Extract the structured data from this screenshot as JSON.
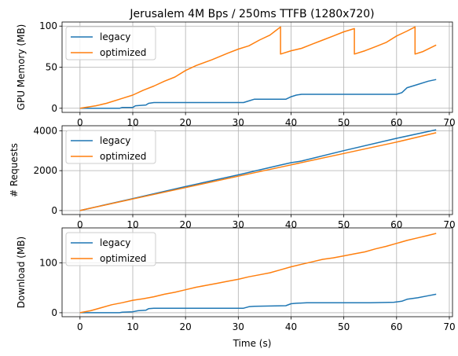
{
  "chart_data": [
    {
      "type": "line",
      "title": "Jerusalem 4M Bps / 250ms TTFB (1280x720)",
      "xlabel": "",
      "ylabel": "GPU Memory (MB)",
      "xlim": [
        -3.4,
        70.6
      ],
      "ylim": [
        -5,
        105
      ],
      "xticks": [
        0,
        10,
        20,
        30,
        40,
        50,
        60,
        70
      ],
      "yticks": [
        0,
        50,
        100
      ],
      "show_xtick_labels": true,
      "grid": true,
      "legend": "upper-left",
      "series": [
        {
          "name": "legacy",
          "color": "#1f77b4",
          "points": [
            [
              0,
              0
            ],
            [
              7.5,
              0
            ],
            [
              8,
              1
            ],
            [
              10,
              1
            ],
            [
              10.5,
              3
            ],
            [
              12.5,
              4
            ],
            [
              13,
              6
            ],
            [
              14,
              7
            ],
            [
              20,
              7
            ],
            [
              25,
              7
            ],
            [
              31,
              7
            ],
            [
              32,
              9
            ],
            [
              33,
              11
            ],
            [
              39,
              11
            ],
            [
              40,
              14
            ],
            [
              41,
              16
            ],
            [
              42,
              17
            ],
            [
              55,
              17
            ],
            [
              60,
              17
            ],
            [
              61,
              19
            ],
            [
              62,
              25
            ],
            [
              64,
              29
            ],
            [
              66,
              33
            ],
            [
              67.5,
              35
            ]
          ]
        },
        {
          "name": "optimized",
          "color": "#ff7f0e",
          "points": [
            [
              0,
              0
            ],
            [
              3,
              3
            ],
            [
              5,
              6
            ],
            [
              8,
              12
            ],
            [
              10,
              16
            ],
            [
              12,
              22
            ],
            [
              14,
              27
            ],
            [
              16,
              33
            ],
            [
              18,
              38
            ],
            [
              20,
              46
            ],
            [
              22,
              52
            ],
            [
              25,
              59
            ],
            [
              28,
              67
            ],
            [
              30,
              72
            ],
            [
              32,
              76
            ],
            [
              34,
              83
            ],
            [
              36,
              89
            ],
            [
              37,
              94
            ],
            [
              38,
              99
            ],
            [
              38,
              66
            ],
            [
              40,
              70
            ],
            [
              42,
              73
            ],
            [
              44,
              78
            ],
            [
              46,
              83
            ],
            [
              48,
              88
            ],
            [
              50,
              93
            ],
            [
              52,
              97
            ],
            [
              52,
              66
            ],
            [
              54,
              70
            ],
            [
              56,
              75
            ],
            [
              58,
              80
            ],
            [
              60,
              88
            ],
            [
              62,
              94
            ],
            [
              63.5,
              99
            ],
            [
              63.5,
              66
            ],
            [
              65,
              69
            ],
            [
              67.5,
              77
            ]
          ]
        }
      ]
    },
    {
      "type": "line",
      "title": "",
      "xlabel": "",
      "ylabel": "# Requests",
      "xlim": [
        -3.4,
        70.6
      ],
      "ylim": [
        -200,
        4250
      ],
      "xticks": [
        0,
        10,
        20,
        30,
        40,
        50,
        60,
        70
      ],
      "yticks": [
        0,
        2000,
        4000
      ],
      "show_xtick_labels": true,
      "grid": true,
      "legend": "upper-left",
      "series": [
        {
          "name": "legacy",
          "color": "#1f77b4",
          "points": [
            [
              0,
              0
            ],
            [
              10,
              600
            ],
            [
              20,
              1200
            ],
            [
              30,
              1790
            ],
            [
              38,
              2280
            ],
            [
              40,
              2400
            ],
            [
              42,
              2480
            ],
            [
              50,
              3000
            ],
            [
              60,
              3620
            ],
            [
              67.5,
              4050
            ]
          ]
        },
        {
          "name": "optimized",
          "color": "#ff7f0e",
          "points": [
            [
              0,
              0
            ],
            [
              10,
              580
            ],
            [
              20,
              1150
            ],
            [
              30,
              1720
            ],
            [
              40,
              2290
            ],
            [
              50,
              2860
            ],
            [
              60,
              3430
            ],
            [
              67.5,
              3900
            ]
          ]
        }
      ]
    },
    {
      "type": "line",
      "title": "",
      "xlabel": "Time (s)",
      "ylabel": "Download (MB)",
      "xlim": [
        -3.4,
        70.6
      ],
      "ylim": [
        -8,
        170
      ],
      "xticks": [
        0,
        10,
        20,
        30,
        40,
        50,
        60,
        70
      ],
      "yticks": [
        0,
        100
      ],
      "show_xtick_labels": true,
      "grid": true,
      "legend": "upper-left",
      "series": [
        {
          "name": "legacy",
          "color": "#1f77b4",
          "points": [
            [
              0,
              0
            ],
            [
              7.5,
              0
            ],
            [
              8,
              1
            ],
            [
              10,
              2
            ],
            [
              11,
              4
            ],
            [
              12.5,
              5
            ],
            [
              13,
              8
            ],
            [
              14,
              9
            ],
            [
              20,
              9
            ],
            [
              25,
              9
            ],
            [
              31,
              9
            ],
            [
              32,
              12
            ],
            [
              33,
              13
            ],
            [
              39,
              14
            ],
            [
              40,
              18
            ],
            [
              41,
              19
            ],
            [
              43,
              20
            ],
            [
              50,
              20
            ],
            [
              55,
              20
            ],
            [
              59.5,
              21
            ],
            [
              61,
              23
            ],
            [
              62,
              27
            ],
            [
              64,
              30
            ],
            [
              66,
              34
            ],
            [
              67.5,
              37
            ]
          ]
        },
        {
          "name": "optimized",
          "color": "#ff7f0e",
          "points": [
            [
              0,
              0
            ],
            [
              2,
              4
            ],
            [
              4,
              10
            ],
            [
              6,
              16
            ],
            [
              8,
              20
            ],
            [
              10,
              25
            ],
            [
              12,
              28
            ],
            [
              14,
              32
            ],
            [
              16,
              37
            ],
            [
              18,
              41
            ],
            [
              20,
              46
            ],
            [
              22,
              51
            ],
            [
              24,
              55
            ],
            [
              26,
              59
            ],
            [
              28,
              63
            ],
            [
              30,
              67
            ],
            [
              32,
              72
            ],
            [
              34,
              76
            ],
            [
              36,
              80
            ],
            [
              38,
              86
            ],
            [
              40,
              92
            ],
            [
              42,
              97
            ],
            [
              44,
              102
            ],
            [
              46,
              107
            ],
            [
              48,
              110
            ],
            [
              50,
              114
            ],
            [
              52,
              118
            ],
            [
              54,
              122
            ],
            [
              56,
              128
            ],
            [
              58,
              133
            ],
            [
              60,
              139
            ],
            [
              62,
              145
            ],
            [
              64,
              150
            ],
            [
              66,
              155
            ],
            [
              67.5,
              159
            ]
          ]
        }
      ]
    }
  ]
}
